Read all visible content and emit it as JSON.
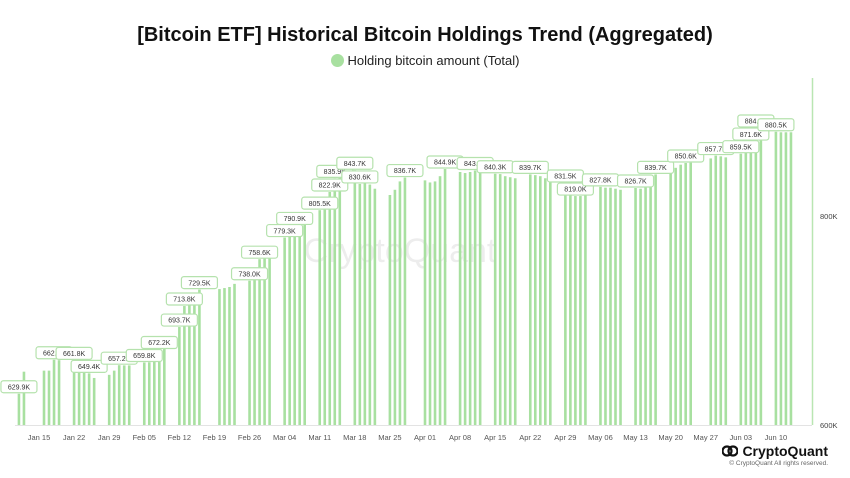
{
  "chart_data": {
    "type": "bar",
    "title": "[Bitcoin ETF] Historical Bitcoin Holdings Trend (Aggregated)",
    "legend": [
      {
        "name": "Holding bitcoin amount (Total)",
        "color": "#a8e0a0"
      }
    ],
    "legend_placement": "top",
    "ylim": [
      600000,
      930000
    ],
    "y_ticks": [
      {
        "value": 600000,
        "label": "600K"
      },
      {
        "value": 800000,
        "label": "800K"
      }
    ],
    "y_axis_side": "right",
    "x_ticks": [
      "2024-01-15",
      "2024-01-22",
      "2024-01-29",
      "2024-02-05",
      "2024-02-12",
      "2024-02-19",
      "2024-02-26",
      "2024-03-04",
      "2024-03-11",
      "2024-03-18",
      "2024-03-25",
      "2024-04-01",
      "2024-04-08",
      "2024-04-15",
      "2024-04-22",
      "2024-04-29",
      "2024-05-06",
      "2024-05-13",
      "2024-05-20",
      "2024-05-27",
      "2024-06-03",
      "2024-06-10"
    ],
    "x_tick_labels": [
      "Jan 15",
      "Jan 22",
      "Jan 29",
      "Feb 05",
      "Feb 12",
      "Feb 19",
      "Feb 26",
      "Mar 04",
      "Mar 11",
      "Mar 18",
      "Mar 25",
      "Apr 01",
      "Apr 08",
      "Apr 15",
      "Apr 22",
      "Apr 29",
      "May 06",
      "May 13",
      "May 20",
      "May 27",
      "Jun 03",
      "Jun 10"
    ],
    "grid": false,
    "bar_color": "#a8e0a0",
    "points": [
      [
        "2024-01-11",
        629.9,
        "629.9K"
      ],
      [
        "2024-01-12",
        651
      ],
      [
        "2024-01-16",
        652
      ],
      [
        "2024-01-17",
        652
      ],
      [
        "2024-01-18",
        662.4,
        "662.4K"
      ],
      [
        "2024-01-19",
        662
      ],
      [
        "2024-01-22",
        661.8,
        "661.8K"
      ],
      [
        "2024-01-23",
        654
      ],
      [
        "2024-01-24",
        652
      ],
      [
        "2024-01-25",
        649.4,
        "649.4K"
      ],
      [
        "2024-01-26",
        645
      ],
      [
        "2024-01-29",
        648
      ],
      [
        "2024-01-30",
        652
      ],
      [
        "2024-01-31",
        657.2,
        "657.2K"
      ],
      [
        "2024-02-01",
        657
      ],
      [
        "2024-02-02",
        657
      ],
      [
        "2024-02-05",
        659.8,
        "659.8K"
      ],
      [
        "2024-02-06",
        660
      ],
      [
        "2024-02-07",
        665
      ],
      [
        "2024-02-08",
        672.2,
        "672.2K"
      ],
      [
        "2024-02-09",
        675
      ],
      [
        "2024-02-12",
        693.7,
        "693.7K"
      ],
      [
        "2024-02-13",
        713.8,
        "713.8K"
      ],
      [
        "2024-02-14",
        715
      ],
      [
        "2024-02-15",
        720
      ],
      [
        "2024-02-16",
        729.5,
        "729.5K"
      ],
      [
        "2024-02-20",
        730
      ],
      [
        "2024-02-21",
        731
      ],
      [
        "2024-02-22",
        732
      ],
      [
        "2024-02-23",
        735
      ],
      [
        "2024-02-26",
        738.0,
        "738.0K"
      ],
      [
        "2024-02-27",
        745
      ],
      [
        "2024-02-28",
        758.6,
        "758.6K"
      ],
      [
        "2024-02-29",
        760
      ],
      [
        "2024-03-01",
        768
      ],
      [
        "2024-03-04",
        779.3,
        "779.3K"
      ],
      [
        "2024-03-05",
        780
      ],
      [
        "2024-03-06",
        790.9,
        "790.9K"
      ],
      [
        "2024-03-07",
        792
      ],
      [
        "2024-03-08",
        795
      ],
      [
        "2024-03-11",
        805.5,
        "805.5K"
      ],
      [
        "2024-03-12",
        810
      ],
      [
        "2024-03-13",
        822.9,
        "822.9K"
      ],
      [
        "2024-03-14",
        835.9,
        "835.9K"
      ],
      [
        "2024-03-15",
        838
      ],
      [
        "2024-03-18",
        843.7,
        "843.7K"
      ],
      [
        "2024-03-19",
        830.6,
        "830.6K"
      ],
      [
        "2024-03-20",
        831
      ],
      [
        "2024-03-21",
        830
      ],
      [
        "2024-03-22",
        826
      ],
      [
        "2024-03-25",
        820
      ],
      [
        "2024-03-26",
        825
      ],
      [
        "2024-03-27",
        833
      ],
      [
        "2024-03-28",
        836.7,
        "836.7K"
      ],
      [
        "2024-04-01",
        834
      ],
      [
        "2024-04-02",
        832
      ],
      [
        "2024-04-03",
        833
      ],
      [
        "2024-04-04",
        838
      ],
      [
        "2024-04-05",
        844.9,
        "844.9K"
      ],
      [
        "2024-04-08",
        842
      ],
      [
        "2024-04-09",
        841
      ],
      [
        "2024-04-10",
        842
      ],
      [
        "2024-04-11",
        843.4,
        "843.4K"
      ],
      [
        "2024-04-12",
        842
      ],
      [
        "2024-04-15",
        840.3,
        "840.3K"
      ],
      [
        "2024-04-16",
        840
      ],
      [
        "2024-04-17",
        838
      ],
      [
        "2024-04-18",
        837
      ],
      [
        "2024-04-19",
        836
      ],
      [
        "2024-04-22",
        839.7,
        "839.7K"
      ],
      [
        "2024-04-23",
        839
      ],
      [
        "2024-04-24",
        838
      ],
      [
        "2024-04-25",
        836
      ],
      [
        "2024-04-26",
        834
      ],
      [
        "2024-04-29",
        831.5,
        "831.5K"
      ],
      [
        "2024-04-30",
        826
      ],
      [
        "2024-05-01",
        819.0,
        "819.0K"
      ],
      [
        "2024-05-02",
        819
      ],
      [
        "2024-05-03",
        822
      ],
      [
        "2024-05-06",
        827.8,
        "827.8K"
      ],
      [
        "2024-05-07",
        827
      ],
      [
        "2024-05-08",
        827
      ],
      [
        "2024-05-09",
        826
      ],
      [
        "2024-05-10",
        825
      ],
      [
        "2024-05-13",
        826.7,
        "826.7K"
      ],
      [
        "2024-05-14",
        826
      ],
      [
        "2024-05-15",
        832
      ],
      [
        "2024-05-16",
        838
      ],
      [
        "2024-05-17",
        839.7,
        "839.7K"
      ],
      [
        "2024-05-20",
        841
      ],
      [
        "2024-05-21",
        846
      ],
      [
        "2024-05-22",
        849
      ],
      [
        "2024-05-23",
        850.6,
        "850.6K"
      ],
      [
        "2024-05-24",
        851
      ],
      [
        "2024-05-28",
        855
      ],
      [
        "2024-05-29",
        857.7,
        "857.7K"
      ],
      [
        "2024-05-30",
        857
      ],
      [
        "2024-05-31",
        856
      ],
      [
        "2024-06-03",
        859.5,
        "859.5K"
      ],
      [
        "2024-06-04",
        862
      ],
      [
        "2024-06-05",
        871.6,
        "871.6K"
      ],
      [
        "2024-06-06",
        884.1,
        "884.1K"
      ],
      [
        "2024-06-07",
        880
      ],
      [
        "2024-06-10",
        880.5,
        "880.5K"
      ],
      [
        "2024-06-11",
        880
      ],
      [
        "2024-06-12",
        880
      ],
      [
        "2024-06-13",
        880
      ]
    ],
    "value_unit": "K BTC"
  },
  "watermark": "CryptoQuant",
  "brand": {
    "name": "CryptoQuant",
    "copyright": "© CryptoQuant All rights reserved."
  }
}
